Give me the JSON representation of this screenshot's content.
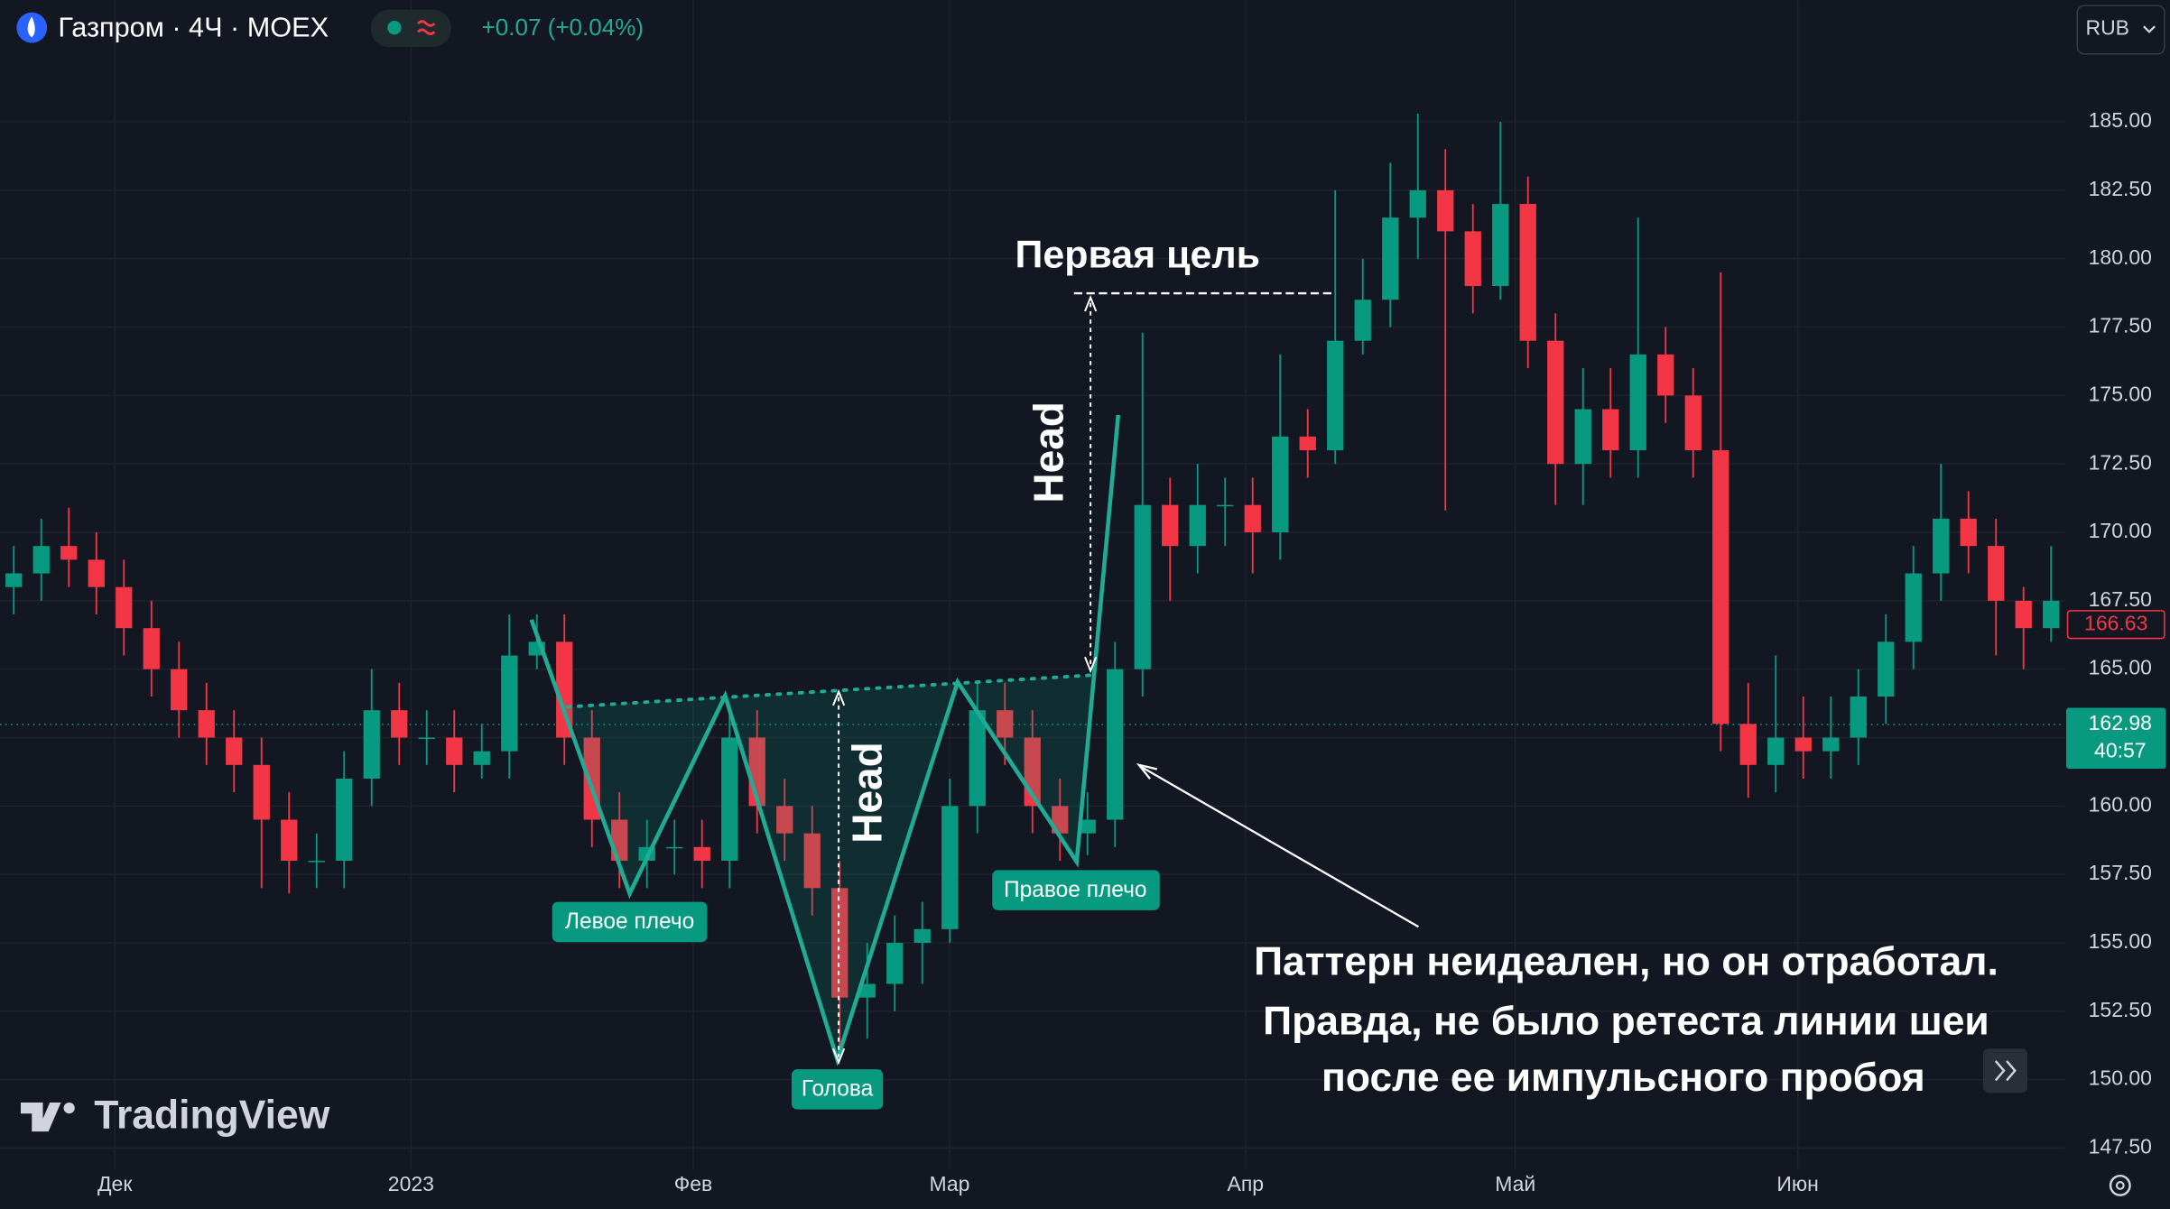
{
  "chart_data": {
    "type": "candlestick",
    "title": "Газпром · 4Ч · MOEX",
    "change": "+0.07 (+0.04%)",
    "currency": "RUB",
    "watermark": "TradingView",
    "x": [
      0,
      1,
      2,
      3,
      4,
      5,
      6,
      7,
      8,
      9,
      10,
      11,
      12,
      13,
      14,
      15,
      16,
      17,
      18,
      19,
      20,
      21,
      22,
      23,
      24,
      25,
      26,
      27,
      28,
      29,
      30,
      31,
      32,
      33,
      34,
      35,
      36,
      37,
      38,
      39,
      40,
      41,
      42,
      43,
      44,
      45,
      46,
      47,
      48,
      49,
      50,
      51,
      52,
      53,
      54,
      55,
      56,
      57,
      58,
      59,
      60,
      61,
      62,
      63,
      64,
      65,
      66,
      67,
      68,
      69,
      70,
      71,
      72,
      73,
      74
    ],
    "series": {
      "up_color": "#089981",
      "down_color": "#f23645",
      "open": [
        168,
        168.5,
        169.5,
        169,
        168,
        166.5,
        165,
        163.5,
        162.5,
        161.5,
        159.5,
        158,
        158,
        161,
        163.5,
        162.5,
        162.5,
        161.5,
        162,
        165.5,
        166,
        162.5,
        159.5,
        158,
        158.5,
        158.5,
        158,
        162.5,
        160,
        159,
        157,
        153,
        153.5,
        155,
        155.5,
        160,
        163.5,
        162.5,
        160,
        159,
        159.5,
        165,
        171,
        169.5,
        171,
        171,
        170,
        173.5,
        173,
        177,
        178.5,
        181.5,
        182.5,
        181,
        179,
        182,
        177,
        172.5,
        174.5,
        173,
        176.5,
        175,
        173,
        163,
        161.5,
        162.5,
        162,
        162.5,
        164,
        166,
        168.5,
        170.5,
        169.5,
        167.5,
        166.5
      ],
      "high": [
        169.5,
        170.5,
        170.9,
        170,
        169,
        167.5,
        166,
        164.5,
        163.5,
        162.5,
        160.5,
        159,
        162,
        165,
        164.5,
        163.5,
        163.5,
        163,
        167,
        167,
        167,
        163.5,
        160.5,
        159.5,
        159.5,
        159.5,
        163.5,
        163.5,
        161,
        160,
        158,
        155,
        156,
        156.5,
        161,
        164.5,
        164.5,
        163.5,
        161,
        160.5,
        166,
        177.3,
        172,
        172.5,
        172,
        172,
        176.5,
        174.5,
        182.5,
        180,
        183.5,
        185.3,
        184,
        182,
        185,
        183,
        178,
        176,
        176,
        181.5,
        177.5,
        176,
        179.5,
        164.5,
        165.5,
        164,
        164,
        165,
        167,
        169.5,
        172.5,
        171.5,
        170.5,
        168,
        169.5
      ],
      "low": [
        167,
        167.5,
        168,
        167,
        165.5,
        164,
        162.5,
        161.5,
        160.5,
        157,
        156.8,
        157,
        157,
        160,
        161.5,
        161.5,
        160.5,
        161,
        161,
        165,
        161.5,
        158.5,
        157,
        157,
        157.5,
        157,
        157,
        159,
        158,
        156,
        150.8,
        151.5,
        152.5,
        153.5,
        155,
        159,
        161.5,
        159,
        158,
        158.2,
        158.5,
        164,
        167.5,
        168.5,
        169.5,
        168.5,
        169,
        172,
        172.5,
        176.5,
        177.5,
        180,
        170.8,
        178,
        178.5,
        176,
        171,
        171,
        172,
        172,
        174,
        172,
        162,
        160.3,
        160.5,
        161,
        161,
        161.5,
        163,
        165,
        167.5,
        168.5,
        165.5,
        165,
        166
      ],
      "close": [
        168.5,
        169.5,
        169,
        168,
        166.5,
        165,
        163.5,
        162.5,
        161.5,
        159.5,
        158,
        158,
        161,
        163.5,
        162.5,
        162.5,
        161.5,
        162,
        165.5,
        166,
        162.5,
        159.5,
        158,
        158.5,
        158.5,
        158,
        162.5,
        160,
        159,
        157,
        153,
        153.5,
        155,
        155.5,
        160,
        163.5,
        162.5,
        160,
        159,
        159.5,
        165,
        171,
        169.5,
        171,
        171,
        170,
        173.5,
        173,
        177,
        178.5,
        181.5,
        182.5,
        181,
        179,
        182,
        177,
        172.5,
        174.5,
        173,
        176.5,
        175,
        173,
        163,
        161.5,
        162.5,
        162,
        162.5,
        164,
        166,
        168.5,
        170.5,
        169.5,
        167.5,
        166.5,
        167.5
      ]
    },
    "xlim": [
      -0.5,
      74.5
    ],
    "xticks": [
      {
        "value": 3.67,
        "label": "Дек"
      },
      {
        "value": 14.43,
        "label": "2023"
      },
      {
        "value": 24.68,
        "label": "Фев"
      },
      {
        "value": 33.99,
        "label": "Мар"
      },
      {
        "value": 44.74,
        "label": "Апр"
      },
      {
        "value": 54.54,
        "label": "Май"
      },
      {
        "value": 64.8,
        "label": "Июн"
      }
    ],
    "ylim": [
      146.74,
      187.43
    ],
    "yticks": [
      {
        "value": 147.5,
        "label": "147.50"
      },
      {
        "value": 150,
        "label": "150.00"
      },
      {
        "value": 152.5,
        "label": "152.50"
      },
      {
        "value": 155,
        "label": "155.00"
      },
      {
        "value": 157.5,
        "label": "157.50"
      },
      {
        "value": 160,
        "label": "160.00"
      },
      {
        "value": 162.5,
        "label": "162.50"
      },
      {
        "value": 165,
        "label": "165.00"
      },
      {
        "value": 167.5,
        "label": "167.50"
      },
      {
        "value": 170,
        "label": "170.00"
      },
      {
        "value": 172.5,
        "label": "172.50"
      },
      {
        "value": 175,
        "label": "175.00"
      },
      {
        "value": 177.5,
        "label": "177.50"
      },
      {
        "value": 180,
        "label": "180.00"
      },
      {
        "value": 182.5,
        "label": "182.50"
      },
      {
        "value": 185,
        "label": "185.00"
      }
    ],
    "grid": true,
    "last_price": 166.63,
    "current_price": 162.98,
    "countdown": "40:57",
    "annotations": {
      "target": "Первая цель",
      "head_1": "Head",
      "head_2": "Head",
      "left_shoulder": "Левое плечо",
      "head_label": "Голова",
      "right_shoulder": "Правое плечо",
      "note": [
        "Паттерн неидеален, но он отработал.",
        "Правда, не было ретеста линии шеи",
        "после ее импульсного пробоя"
      ]
    }
  }
}
